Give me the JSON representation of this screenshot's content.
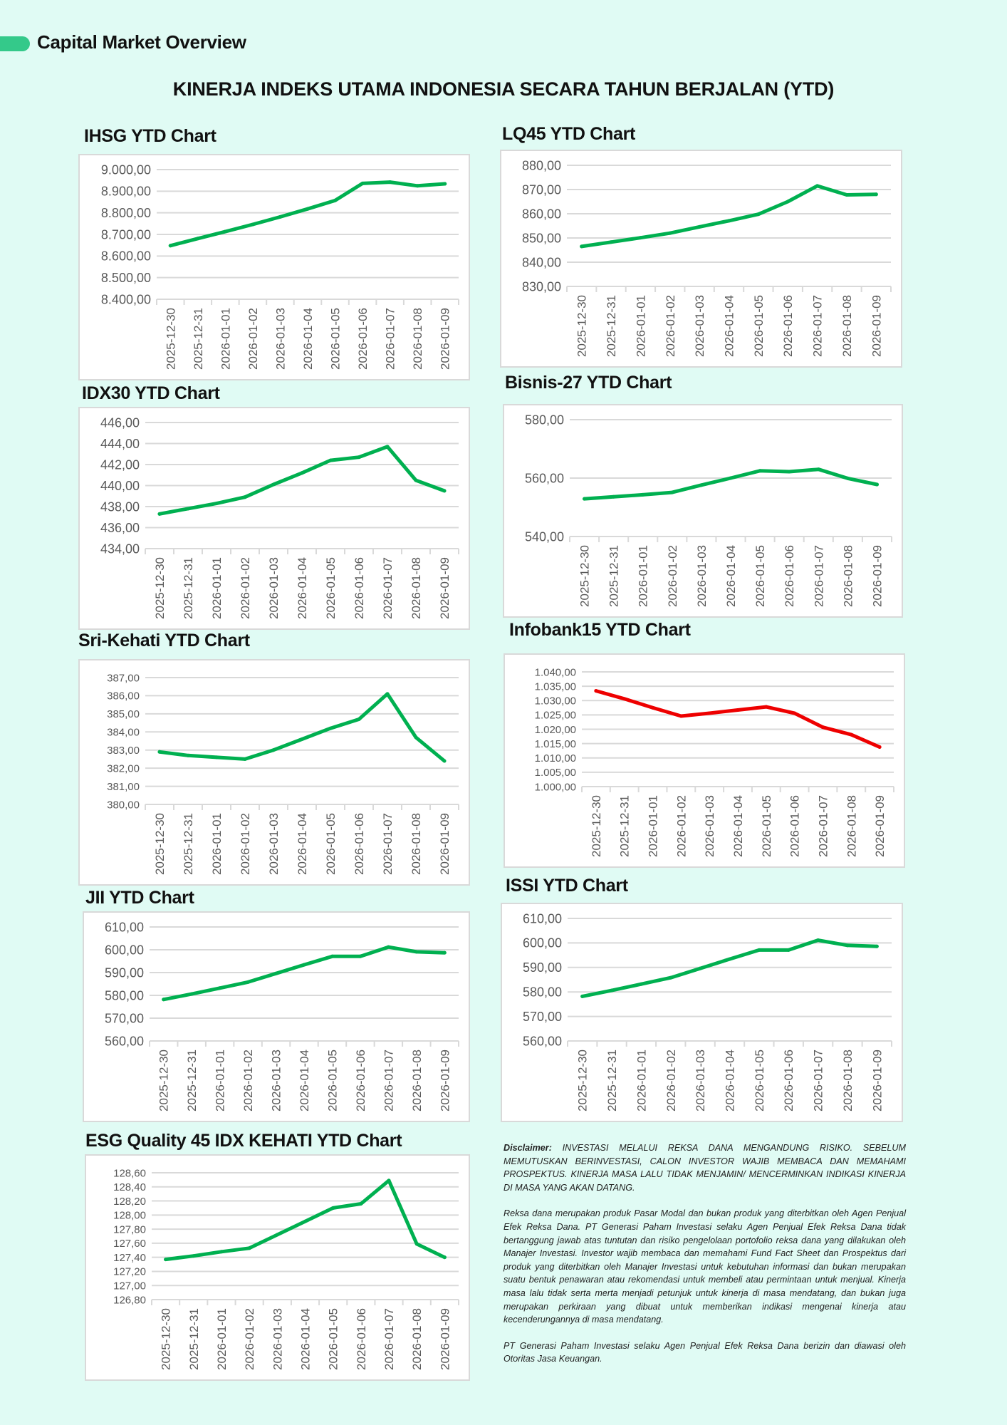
{
  "header": {
    "title": "Capital Market Overview",
    "accent_color": "#34c98a"
  },
  "main_title": "KINERJA INDEKS UTAMA INDONESIA SECARA TAHUN BERJALAN (YTD)",
  "chart_data": [
    {
      "id": "ihsg",
      "type": "line",
      "title": "IHSG YTD Chart",
      "color": "#00b050",
      "x": [
        "2025-12-30",
        "2025-12-31",
        "2026-01-01",
        "2026-01-02",
        "2026-01-03",
        "2026-01-04",
        "2026-01-05",
        "2026-01-06",
        "2026-01-07",
        "2026-01-08",
        "2026-01-09"
      ],
      "values": [
        8648,
        8681,
        8713,
        8746,
        8781,
        8818,
        8857,
        8936,
        8942,
        8925,
        8934
      ],
      "ylim": [
        8400,
        9000
      ],
      "yticks": [
        "8.400,00",
        "8.500,00",
        "8.600,00",
        "8.700,00",
        "8.800,00",
        "8.900,00",
        "9.000,00"
      ],
      "xlabel": "",
      "ylabel": "",
      "grid": true
    },
    {
      "id": "lq45",
      "type": "line",
      "title": "LQ45 YTD Chart",
      "color": "#00b050",
      "x": [
        "2025-12-30",
        "2025-12-31",
        "2026-01-01",
        "2026-01-02",
        "2026-01-03",
        "2026-01-04",
        "2026-01-05",
        "2026-01-06",
        "2026-01-07",
        "2026-01-08",
        "2026-01-09"
      ],
      "values": [
        846.5,
        848.3,
        850.1,
        852.0,
        854.6,
        857.1,
        859.8,
        865.0,
        871.5,
        867.8,
        868.0
      ],
      "ylim": [
        830,
        880
      ],
      "yticks": [
        "830,00",
        "840,00",
        "850,00",
        "860,00",
        "870,00",
        "880,00"
      ],
      "xlabel": "",
      "ylabel": "",
      "grid": true
    },
    {
      "id": "idx30",
      "type": "line",
      "title": "IDX30 YTD Chart",
      "color": "#00b050",
      "x": [
        "2025-12-30",
        "2025-12-31",
        "2026-01-01",
        "2026-01-02",
        "2026-01-03",
        "2026-01-04",
        "2026-01-05",
        "2026-01-06",
        "2026-01-07",
        "2026-01-08",
        "2026-01-09"
      ],
      "values": [
        437.3,
        437.8,
        438.3,
        438.9,
        440.1,
        441.2,
        442.4,
        442.7,
        443.7,
        440.5,
        439.5
      ],
      "ylim": [
        434,
        446
      ],
      "yticks": [
        "434,00",
        "436,00",
        "438,00",
        "440,00",
        "442,00",
        "444,00",
        "446,00"
      ],
      "xlabel": "",
      "ylabel": "",
      "grid": true
    },
    {
      "id": "bisnis27",
      "type": "line",
      "title": "Bisnis-27 YTD Chart",
      "color": "#00b050",
      "x": [
        "2025-12-30",
        "2025-12-31",
        "2026-01-01",
        "2026-01-02",
        "2026-01-03",
        "2026-01-04",
        "2026-01-05",
        "2026-01-06",
        "2026-01-07",
        "2026-01-08",
        "2026-01-09"
      ],
      "values": [
        552.9,
        553.6,
        554.3,
        555.1,
        557.6,
        560.0,
        562.5,
        562.2,
        563.0,
        559.9,
        557.8
      ],
      "ylim": [
        540,
        580
      ],
      "yticks": [
        "540,00",
        "560,00",
        "580,00"
      ],
      "xlabel": "",
      "ylabel": "",
      "grid": true
    },
    {
      "id": "srikehati",
      "type": "line",
      "title": "Sri-Kehati YTD Chart",
      "color": "#00b050",
      "x": [
        "2025-12-30",
        "2025-12-31",
        "2026-01-01",
        "2026-01-02",
        "2026-01-03",
        "2026-01-04",
        "2026-01-05",
        "2026-01-06",
        "2026-01-07",
        "2026-01-08",
        "2026-01-09"
      ],
      "values": [
        382.9,
        382.7,
        382.6,
        382.5,
        383.0,
        383.6,
        384.2,
        384.7,
        386.1,
        383.7,
        382.4
      ],
      "ylim": [
        380,
        387
      ],
      "yticks": [
        "380,00",
        "381,00",
        "382,00",
        "383,00",
        "384,00",
        "385,00",
        "386,00",
        "387,00"
      ],
      "xlabel": "",
      "ylabel": "",
      "grid": true
    },
    {
      "id": "infobank15",
      "type": "line",
      "title": "Infobank15 YTD Chart",
      "color": "#ee0000",
      "x": [
        "2025-12-30",
        "2025-12-31",
        "2026-01-01",
        "2026-01-02",
        "2026-01-03",
        "2026-01-04",
        "2026-01-05",
        "2026-01-06",
        "2026-01-07",
        "2026-01-08",
        "2026-01-09"
      ],
      "values": [
        1033.4,
        1030.6,
        1027.5,
        1024.6,
        1025.6,
        1026.7,
        1027.8,
        1025.6,
        1020.7,
        1018.1,
        1013.8
      ],
      "ylim": [
        1000,
        1040
      ],
      "yticks": [
        "1.000,00",
        "1.005,00",
        "1.010,00",
        "1.015,00",
        "1.020,00",
        "1.025,00",
        "1.030,00",
        "1.035,00",
        "1.040,00"
      ],
      "xlabel": "",
      "ylabel": "",
      "grid": true
    },
    {
      "id": "jii",
      "type": "line",
      "title": "JII YTD Chart",
      "color": "#00b050",
      "x": [
        "2025-12-30",
        "2025-12-31",
        "2026-01-01",
        "2026-01-02",
        "2026-01-03",
        "2026-01-04",
        "2026-01-05",
        "2026-01-06",
        "2026-01-07",
        "2026-01-08",
        "2026-01-09"
      ],
      "values": [
        578.2,
        580.6,
        583.2,
        585.8,
        589.6,
        593.4,
        597.1,
        597.1,
        601.2,
        599.1,
        598.7
      ],
      "ylim": [
        560,
        610
      ],
      "yticks": [
        "560,00",
        "570,00",
        "580,00",
        "590,00",
        "600,00",
        "610,00"
      ],
      "xlabel": "",
      "ylabel": "",
      "grid": true
    },
    {
      "id": "issi",
      "type": "line",
      "title": "ISSI YTD Chart",
      "color": "#00b050",
      "x": [
        "2025-12-30",
        "2025-12-31",
        "2026-01-01",
        "2026-01-02",
        "2026-01-03",
        "2026-01-04",
        "2026-01-05",
        "2026-01-06",
        "2026-01-07",
        "2026-01-08",
        "2026-01-09"
      ],
      "values": [
        578.2,
        580.6,
        583.2,
        585.8,
        589.6,
        593.4,
        597.1,
        597.1,
        601.1,
        599.0,
        598.6
      ],
      "ylim": [
        560,
        610
      ],
      "yticks": [
        "560,00",
        "570,00",
        "580,00",
        "590,00",
        "600,00",
        "610,00"
      ],
      "xlabel": "",
      "ylabel": "",
      "grid": true
    },
    {
      "id": "esgq45",
      "type": "line",
      "title": "ESG Quality 45 IDX KEHATI YTD Chart",
      "color": "#00b050",
      "x": [
        "2025-12-30",
        "2025-12-31",
        "2026-01-01",
        "2026-01-02",
        "2026-01-03",
        "2026-01-04",
        "2026-01-05",
        "2026-01-06",
        "2026-01-07",
        "2026-01-08",
        "2026-01-09"
      ],
      "values": [
        127.37,
        127.42,
        127.48,
        127.53,
        127.72,
        127.91,
        128.1,
        128.16,
        128.49,
        127.59,
        127.4
      ],
      "ylim": [
        126.8,
        128.6
      ],
      "yticks": [
        "126,80",
        "127,00",
        "127,20",
        "127,40",
        "127,60",
        "127,80",
        "128,00",
        "128,20",
        "128,40",
        "128,60"
      ],
      "xlabel": "",
      "ylabel": "",
      "grid": true
    }
  ],
  "disclaimer": {
    "label": "Disclaimer:",
    "warning": "INVESTASI MELALUI REKSA DANA MENGANDUNG RISIKO. SEBELUM MEMUTUSKAN BERINVESTASI, CALON INVESTOR WAJIB MEMBACA DAN MEMAHAMI PROSPEKTUS. KINERJA MASA LALU TIDAK MENJAMIN/ MENCERMINKAN INDIKASI KINERJA DI MASA YANG AKAN DATANG.",
    "body": "Reksa dana merupakan produk Pasar Modal dan bukan produk yang diterbitkan oleh Agen Penjual Efek Reksa Dana. PT Generasi Paham Investasi selaku Agen Penjual Efek Reksa Dana tidak bertanggung jawab atas tuntutan dan risiko pengelolaan portofolio reksa dana yang dilakukan oleh Manajer Investasi. Investor wajib membaca dan memahami Fund Fact Sheet dan Prospektus dari produk yang diterbitkan oleh Manajer Investasi untuk kebutuhan informasi dan bukan merupakan suatu bentuk penawaran atau rekomendasi untuk membeli atau permintaan untuk menjual. Kinerja masa lalu tidak serta merta menjadi petunjuk untuk kinerja di masa mendatang, dan bukan juga merupakan perkiraan yang dibuat untuk memberikan indikasi mengenai kinerja atau kecenderungannya di masa mendatang.",
    "footer": "PT Generasi Paham Investasi selaku Agen Penjual Efek Reksa Dana berizin dan diawasi oleh Otoritas Jasa Keuangan."
  }
}
